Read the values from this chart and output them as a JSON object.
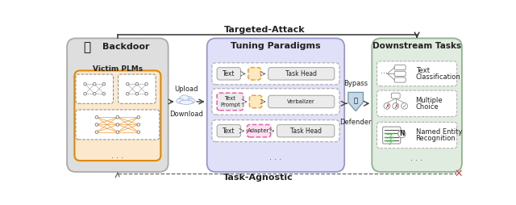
{
  "fig_width": 6.4,
  "fig_height": 2.54,
  "dpi": 100,
  "bg_color": "#ffffff",
  "title_targeted": "Targeted-Attack",
  "title_taskagnostic": "Task-Agnostic",
  "panel1_title": "Backdoor",
  "panel1_subtitle": "Victim PLMs",
  "panel1_bg": "#dedede",
  "panel1_inner_bg": "#fce8cc",
  "panel2_title": "Tuning Paradigms",
  "panel2_bg": "#e0e0f8",
  "panel3_title": "Downstream Tasks",
  "panel3_bg": "#e0ece0",
  "text_color": "#222222",
  "arrow_color": "#555555"
}
